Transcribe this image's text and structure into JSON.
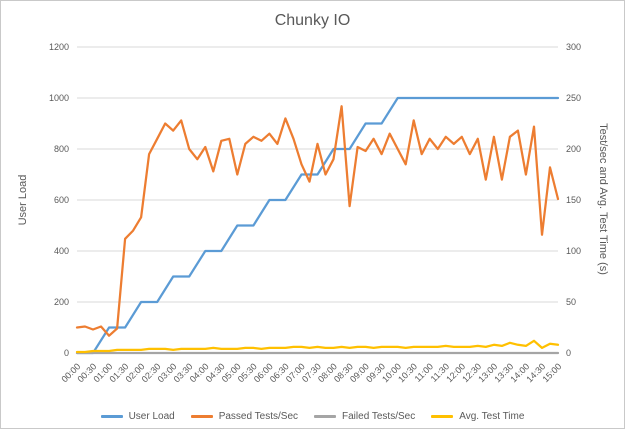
{
  "window": {
    "background": "#FFFFFF",
    "border_color": "#C9C9C9"
  },
  "chart_data": {
    "type": "line",
    "title": "Chunky IO",
    "text_color": "#595959",
    "grid_color": "#D9D9D9",
    "grid": true,
    "legend_position": "bottom",
    "x_axis": {
      "total_minutes": 900,
      "labels": [
        "00:00",
        "00:30",
        "01:00",
        "01:30",
        "02:00",
        "02:30",
        "03:00",
        "03:30",
        "04:00",
        "04:30",
        "05:00",
        "05:30",
        "06:00",
        "06:30",
        "07:00",
        "07:30",
        "08:00",
        "08:30",
        "09:00",
        "09:30",
        "10:00",
        "10:30",
        "11:00",
        "11:30",
        "12:00",
        "12:30",
        "13:00",
        "13:30",
        "14:00",
        "14:30",
        "15:00"
      ]
    },
    "y_axis_left": {
      "title": "User Load",
      "min": 0,
      "max": 1200,
      "step": 200,
      "ticks": [
        0,
        200,
        400,
        600,
        800,
        1000,
        1200
      ]
    },
    "y_axis_right": {
      "title": "Test/sec and Avg. Test Time (s)",
      "min": 0,
      "max": 300,
      "step": 50,
      "ticks": [
        0,
        50,
        100,
        150,
        200,
        250,
        300
      ]
    },
    "series": [
      {
        "name": "User Load",
        "color": "#5B9BD5",
        "axis": "left",
        "interval_min": 30,
        "values": [
          0,
          0,
          100,
          100,
          200,
          200,
          300,
          300,
          400,
          400,
          500,
          500,
          600,
          600,
          700,
          700,
          800,
          800,
          900,
          900,
          1000,
          1000,
          1000,
          1000,
          1000,
          1000,
          1000,
          1000,
          1000,
          1000,
          1000
        ]
      },
      {
        "name": "Passed Tests/Sec",
        "color": "#ED7D31",
        "axis": "right",
        "interval_min": 15,
        "values": [
          25,
          26,
          23,
          26,
          17,
          24,
          112,
          120,
          133,
          195,
          210,
          225,
          218,
          228,
          200,
          190,
          202,
          178,
          208,
          210,
          175,
          205,
          212,
          208,
          215,
          205,
          230,
          210,
          185,
          168,
          205,
          175,
          190,
          242,
          144,
          202,
          198,
          210,
          195,
          215,
          200,
          185,
          228,
          195,
          210,
          200,
          212,
          205,
          212,
          195,
          210,
          170,
          212,
          170,
          212,
          218,
          175,
          222,
          116,
          182,
          151
        ]
      },
      {
        "name": "Failed Tests/Sec",
        "color": "#A5A5A5",
        "axis": "right",
        "interval_min": 30,
        "values": [
          0,
          0,
          0,
          0,
          0,
          0,
          0,
          0,
          0,
          0,
          0,
          0,
          0,
          0,
          0,
          0,
          0,
          0,
          0,
          0,
          0,
          0,
          0,
          0,
          0,
          0,
          0,
          0,
          0,
          0,
          0
        ]
      },
      {
        "name": "Avg. Test Time",
        "color": "#FFC000",
        "axis": "right",
        "interval_min": 15,
        "values": [
          1,
          1,
          2,
          2,
          2,
          3,
          3,
          3,
          3,
          4,
          4,
          4,
          3,
          4,
          4,
          4,
          4,
          5,
          4,
          4,
          4,
          5,
          5,
          4,
          5,
          5,
          5,
          6,
          6,
          5,
          6,
          5,
          5,
          6,
          5,
          6,
          6,
          5,
          6,
          6,
          6,
          5,
          6,
          6,
          6,
          6,
          7,
          6,
          6,
          6,
          7,
          6,
          8,
          7,
          10,
          8,
          7,
          12,
          5,
          9,
          8
        ]
      }
    ]
  }
}
